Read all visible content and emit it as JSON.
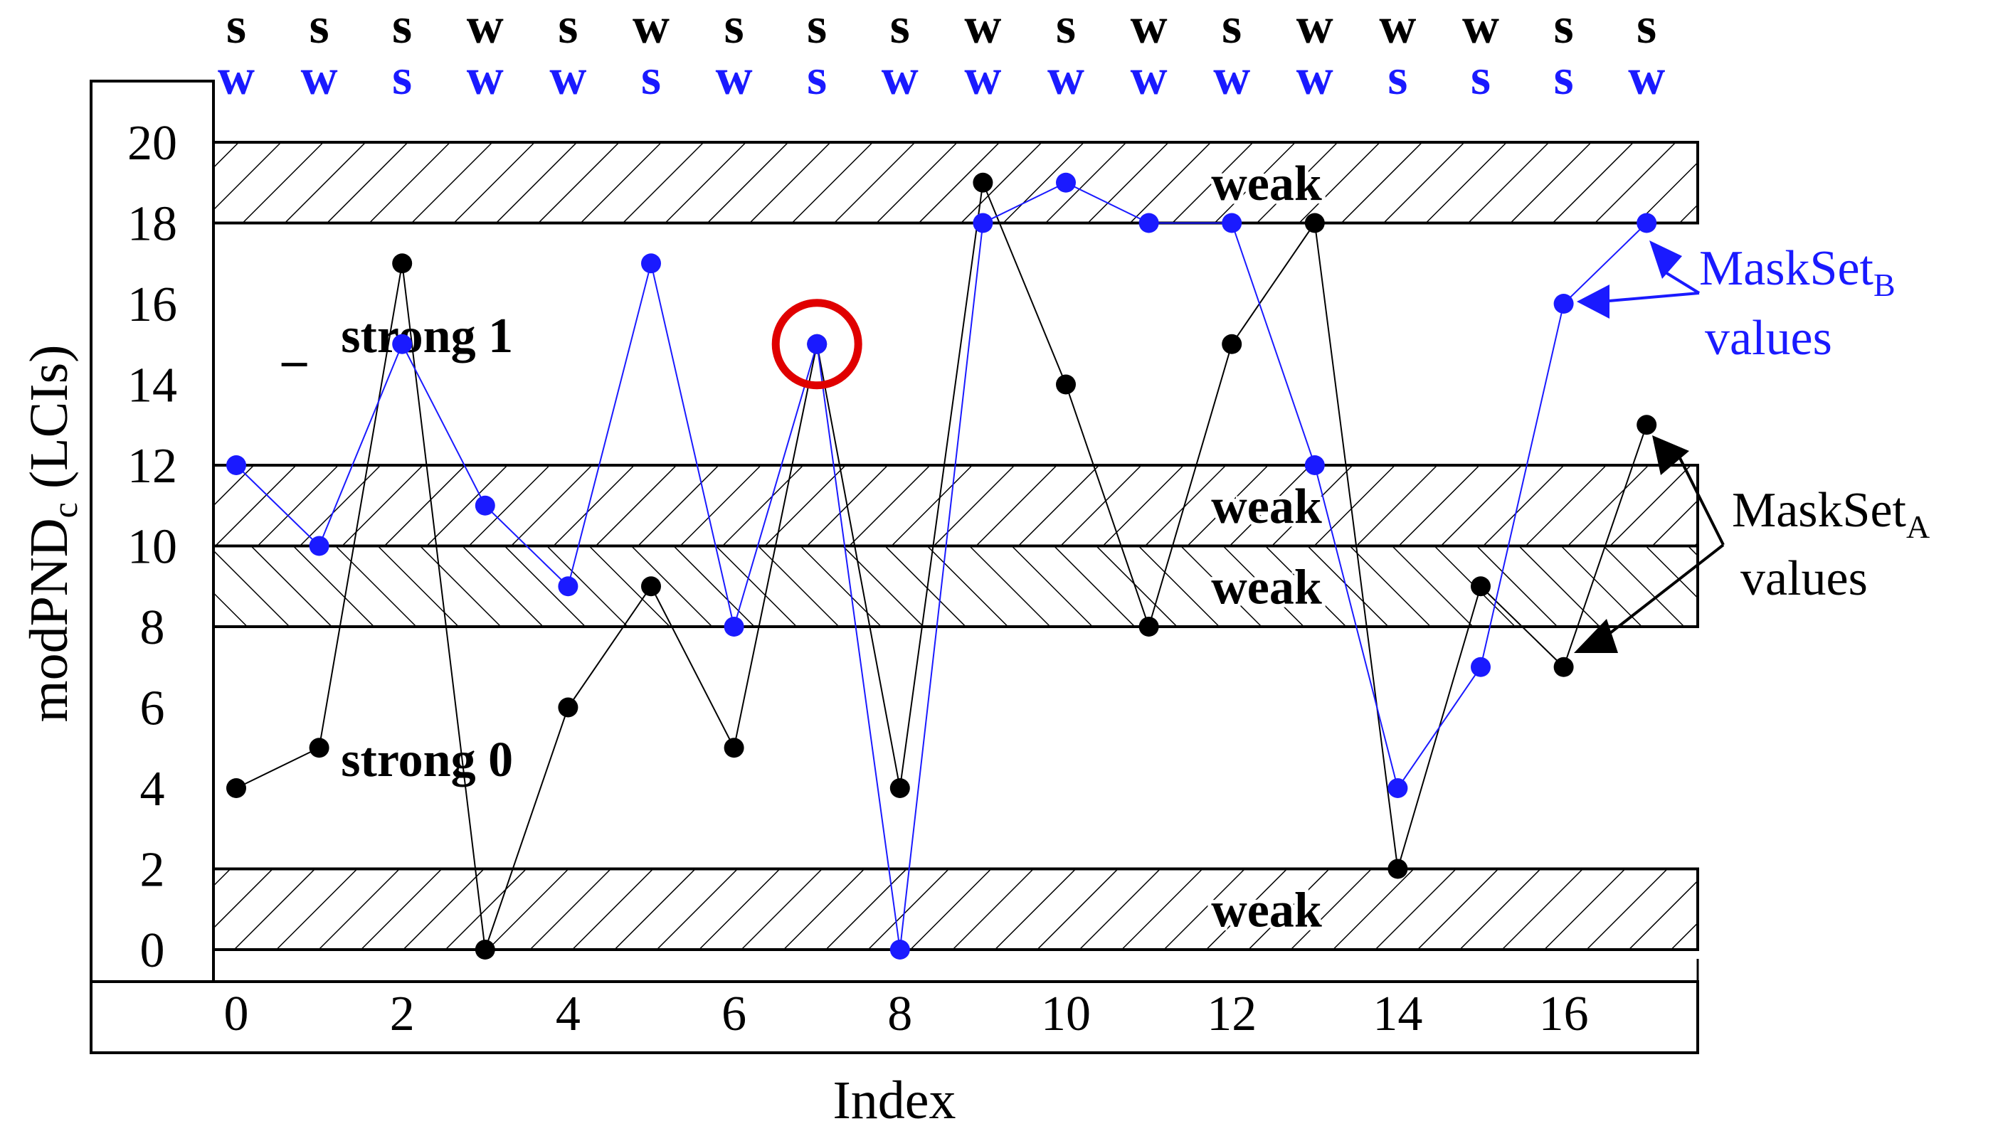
{
  "chart_data": {
    "type": "line",
    "xlabel": "Index",
    "ylabel_main": "modPND",
    "ylabel_sub": "c",
    "ylabel_tail": " (LCIs)",
    "xlim": [
      0,
      18
    ],
    "ylim": [
      0,
      20
    ],
    "x_ticks": [
      0,
      2,
      4,
      6,
      8,
      10,
      12,
      14,
      16
    ],
    "y_ticks": [
      0,
      2,
      4,
      6,
      8,
      10,
      12,
      14,
      16,
      18,
      20
    ],
    "x": [
      0,
      1,
      2,
      3,
      4,
      5,
      6,
      7,
      8,
      9,
      10,
      11,
      12,
      13,
      14,
      15,
      16,
      17
    ],
    "series": [
      {
        "key": "A",
        "color": "#000000",
        "values": [
          4,
          5,
          17,
          0,
          6,
          9,
          5,
          15,
          4,
          19,
          14,
          8,
          15,
          18,
          2,
          9,
          7,
          13
        ]
      },
      {
        "key": "B",
        "color": "#1a1aff",
        "values": [
          12,
          10,
          15,
          11,
          9,
          17,
          8,
          15,
          0,
          18,
          19,
          18,
          18,
          12,
          4,
          7,
          16,
          18
        ]
      }
    ],
    "top_labels_a": [
      "s",
      "s",
      "s",
      "w",
      "s",
      "w",
      "s",
      "s",
      "s",
      "w",
      "s",
      "w",
      "s",
      "w",
      "w",
      "w",
      "s",
      "s"
    ],
    "top_labels_b": [
      "w",
      "w",
      "s",
      "w",
      "w",
      "s",
      "w",
      "s",
      "w",
      "w",
      "w",
      "w",
      "w",
      "w",
      "s",
      "s",
      "s",
      "w"
    ],
    "bands": [
      {
        "from": 18,
        "to": 20,
        "label": "weak",
        "hatch": "forward"
      },
      {
        "from": 10,
        "to": 12,
        "label": "weak",
        "hatch": "forward"
      },
      {
        "from": 8,
        "to": 10,
        "label": "weak",
        "hatch": "backward"
      },
      {
        "from": 0,
        "to": 2,
        "label": "weak",
        "hatch": "forward"
      }
    ],
    "region_labels": [
      {
        "text": "strong 1",
        "x": 2.3,
        "y": 14.8
      },
      {
        "text": "strong 0",
        "x": 2.3,
        "y": 4.3
      },
      {
        "text": "–",
        "x": 0.7,
        "y": 14.2
      }
    ],
    "highlight": {
      "x": 7,
      "y": 15,
      "color": "#e00000"
    },
    "annotations": {
      "b_main": "MaskSet",
      "b_sub": "B",
      "b_line2": "values",
      "a_main": "MaskSet",
      "a_sub": "A",
      "a_line2": "values"
    }
  }
}
